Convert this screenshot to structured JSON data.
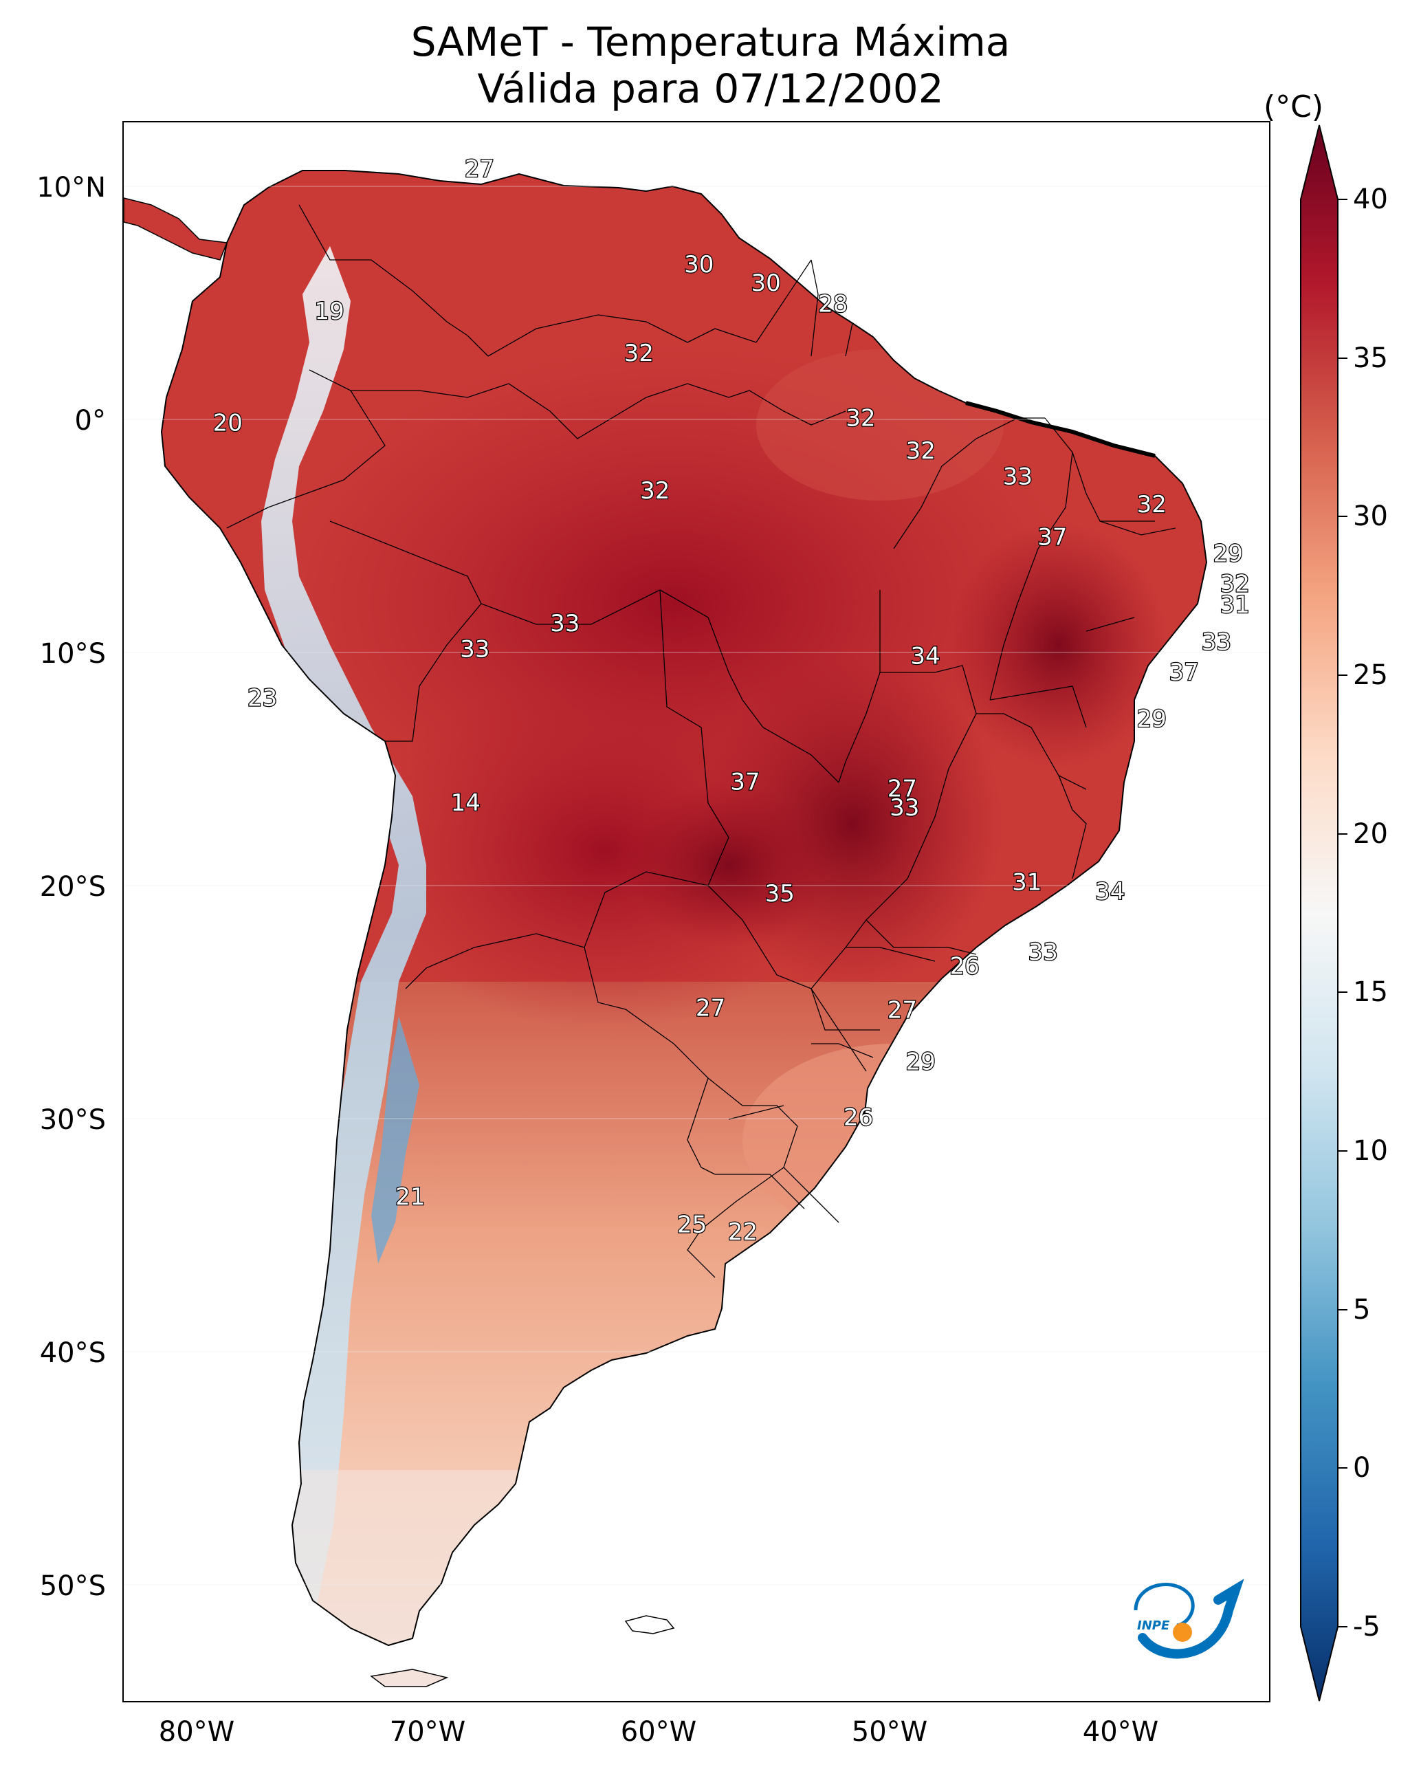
{
  "title": {
    "line1": "SAMeT - Temperatura Máxima",
    "line2": "Válida para 07/12/2002"
  },
  "map": {
    "lat_labels": [
      "10°N",
      "0°",
      "10°S",
      "20°S",
      "30°S",
      "40°S",
      "50°S"
    ],
    "lon_labels": [
      "80°W",
      "70°W",
      "60°W",
      "50°W",
      "40°W"
    ],
    "point_labels": [
      {
        "text": "27",
        "lon": -67.6,
        "lat": 10.7
      },
      {
        "text": "19",
        "lon": -74.1,
        "lat": 4.6
      },
      {
        "text": "30",
        "lon": -58.1,
        "lat": 6.6
      },
      {
        "text": "30",
        "lon": -55.2,
        "lat": 5.8
      },
      {
        "text": "28",
        "lon": -52.3,
        "lat": 4.9
      },
      {
        "text": "32",
        "lon": -60.7,
        "lat": 2.8
      },
      {
        "text": "20",
        "lon": -78.5,
        "lat": -0.2
      },
      {
        "text": "32",
        "lon": -51.1,
        "lat": 0.0
      },
      {
        "text": "32",
        "lon": -48.5,
        "lat": -1.4
      },
      {
        "text": "32",
        "lon": -60.0,
        "lat": -3.1
      },
      {
        "text": "33",
        "lon": -44.3,
        "lat": -2.5
      },
      {
        "text": "32",
        "lon": -38.5,
        "lat": -3.7
      },
      {
        "text": "37",
        "lon": -42.8,
        "lat": -5.1
      },
      {
        "text": "29",
        "lon": -35.2,
        "lat": -5.8
      },
      {
        "text": "32",
        "lon": -34.9,
        "lat": -7.1
      },
      {
        "text": "31",
        "lon": -34.9,
        "lat": -8.0
      },
      {
        "text": "33",
        "lon": -63.9,
        "lat": -8.8
      },
      {
        "text": "33",
        "lon": -67.8,
        "lat": -9.9
      },
      {
        "text": "34",
        "lon": -48.3,
        "lat": -10.2
      },
      {
        "text": "33",
        "lon": -35.7,
        "lat": -9.6
      },
      {
        "text": "37",
        "lon": -37.1,
        "lat": -10.9
      },
      {
        "text": "23",
        "lon": -77.0,
        "lat": -12.0
      },
      {
        "text": "29",
        "lon": -38.5,
        "lat": -12.9
      },
      {
        "text": "14",
        "lon": -68.2,
        "lat": -16.5
      },
      {
        "text": "37",
        "lon": -56.1,
        "lat": -15.6
      },
      {
        "text": "27",
        "lon": -49.3,
        "lat": -15.9
      },
      {
        "text": "33",
        "lon": -49.2,
        "lat": -16.7
      },
      {
        "text": "35",
        "lon": -54.6,
        "lat": -20.4
      },
      {
        "text": "31",
        "lon": -43.9,
        "lat": -19.9
      },
      {
        "text": "34",
        "lon": -40.3,
        "lat": -20.3
      },
      {
        "text": "33",
        "lon": -43.2,
        "lat": -22.9
      },
      {
        "text": "26",
        "lon": -46.6,
        "lat": -23.5
      },
      {
        "text": "27",
        "lon": -57.6,
        "lat": -25.3
      },
      {
        "text": "27",
        "lon": -49.3,
        "lat": -25.4
      },
      {
        "text": "29",
        "lon": -48.5,
        "lat": -27.6
      },
      {
        "text": "26",
        "lon": -51.2,
        "lat": -30.0
      },
      {
        "text": "21",
        "lon": -70.6,
        "lat": -33.4
      },
      {
        "text": "25",
        "lon": -58.4,
        "lat": -34.6
      },
      {
        "text": "22",
        "lon": -56.2,
        "lat": -34.9
      }
    ]
  },
  "colorbar": {
    "unit": "(°C)",
    "ticks": [
      "-5",
      "0",
      "5",
      "10",
      "15",
      "20",
      "25",
      "30",
      "35",
      "40"
    ],
    "range": [
      -5,
      40
    ],
    "colors": [
      "#08306b",
      "#2166ac",
      "#4393c3",
      "#92c5de",
      "#d1e5f0",
      "#f7f7f7",
      "#fddbc7",
      "#f4a582",
      "#d6604d",
      "#b2182b",
      "#67001f"
    ]
  },
  "logo": {
    "text": "INPE",
    "colors": [
      "#0072bc",
      "#f7941d"
    ]
  }
}
